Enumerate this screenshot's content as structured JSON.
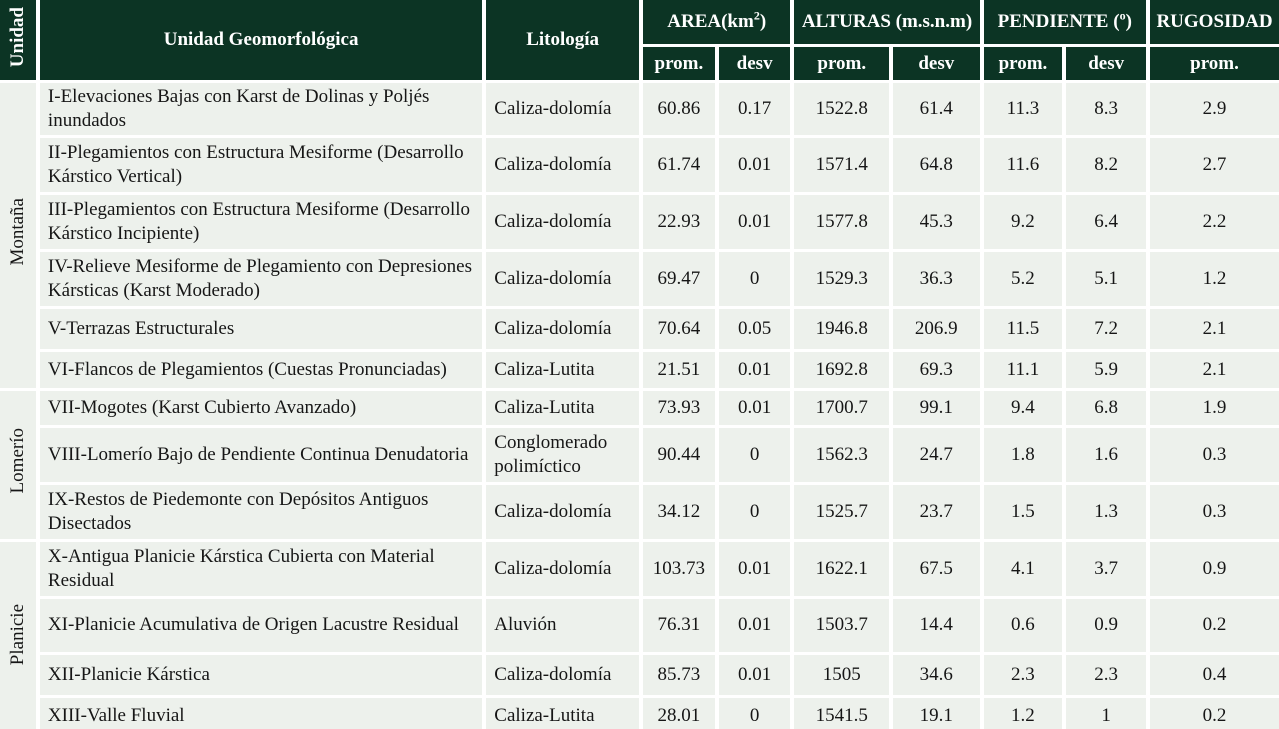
{
  "colors": {
    "header_bg": "#0c3424",
    "header_text": "#ffffff",
    "cell_bg": "#edf1ec",
    "body_text": "#161616",
    "separator": "#ffffff"
  },
  "table": {
    "header": {
      "unidad": "Unidad",
      "unit_col": "Unidad Geomorfológica",
      "litologia": "Litología",
      "area_pre": "AREA(km",
      "area_sup": "2",
      "area_post": ")",
      "alturas": "ALTURAS (m.s.n.m)",
      "pendiente_pre": "PENDIENTE (",
      "pendiente_sup": "o",
      "pendiente_post": ")",
      "rugosidad": "RUGOSIDAD",
      "prom": "prom.",
      "desv": "desv"
    },
    "groups": [
      {
        "label": "Montaña",
        "rows": [
          {
            "unit": "I-Elevaciones Bajas con Karst de Dolinas y Poljés inundados",
            "litologia": "Caliza-dolomía",
            "values": [
              "60.86",
              "0.17",
              "1522.8",
              "61.4",
              "11.3",
              "8.3",
              "2.9"
            ]
          },
          {
            "unit": "II-Plegamientos con Estructura Mesiforme (Desarrollo Kárstico Vertical)",
            "litologia": "Caliza-dolomía",
            "values": [
              "61.74",
              "0.01",
              "1571.4",
              "64.8",
              "11.6",
              "8.2",
              "2.7"
            ]
          },
          {
            "unit": "III-Plegamientos con Estructura Mesiforme (Desarrollo Kárstico Incipiente)",
            "litologia": "Caliza-dolomía",
            "values": [
              "22.93",
              "0.01",
              "1577.8",
              "45.3",
              "9.2",
              "6.4",
              "2.2"
            ]
          },
          {
            "unit": "IV-Relieve Mesiforme de Plegamiento con Depresiones Kársticas (Karst Moderado)",
            "litologia": "Caliza-dolomía",
            "values": [
              "69.47",
              "0",
              "1529.3",
              "36.3",
              "5.2",
              "5.1",
              "1.2"
            ]
          },
          {
            "unit": "V-Terrazas Estructurales",
            "litologia": "Caliza-dolomía",
            "values": [
              "70.64",
              "0.05",
              "1946.8",
              "206.9",
              "11.5",
              "7.2",
              "2.1"
            ]
          },
          {
            "unit": "VI-Flancos de Plegamientos (Cuestas Pronunciadas)",
            "litologia": "Caliza-Lutita",
            "values": [
              "21.51",
              "0.01",
              "1692.8",
              "69.3",
              "11.1",
              "5.9",
              "2.1"
            ]
          }
        ]
      },
      {
        "label": "Lomerío",
        "rows": [
          {
            "unit": "VII-Mogotes (Karst Cubierto Avanzado)",
            "litologia": "Caliza-Lutita",
            "values": [
              "73.93",
              "0.01",
              "1700.7",
              "99.1",
              "9.4",
              "6.8",
              "1.9"
            ]
          },
          {
            "unit": "VIII-Lomerío Bajo de Pendiente Continua Denudatoria",
            "litologia": "Conglomerado polimíctico",
            "values": [
              "90.44",
              "0",
              "1562.3",
              "24.7",
              "1.8",
              "1.6",
              "0.3"
            ]
          },
          {
            "unit": "IX-Restos de Piedemonte con Depósitos Antiguos Disectados",
            "litologia": "Caliza-dolomía",
            "values": [
              "34.12",
              "0",
              "1525.7",
              "23.7",
              "1.5",
              "1.3",
              "0.3"
            ]
          }
        ]
      },
      {
        "label": "Planicie",
        "rows": [
          {
            "unit": "X-Antigua Planicie Kárstica Cubierta con Material Residual",
            "litologia": "Caliza-dolomía",
            "values": [
              "103.73",
              "0.01",
              "1622.1",
              "67.5",
              "4.1",
              "3.7",
              "0.9"
            ]
          },
          {
            "unit": "XI-Planicie Acumulativa de Origen Lacustre Residual",
            "litologia": "Aluvión",
            "values": [
              "76.31",
              "0.01",
              "1503.7",
              "14.4",
              "0.6",
              "0.9",
              "0.2"
            ]
          },
          {
            "unit": "XII-Planicie Kárstica",
            "litologia": "Caliza-dolomía",
            "values": [
              "85.73",
              "0.01",
              "1505",
              "34.6",
              "2.3",
              "2.3",
              "0.4"
            ]
          },
          {
            "unit": "XIII-Valle Fluvial",
            "litologia": "Caliza-Lutita",
            "values": [
              "28.01",
              "0",
              "1541.5",
              "19.1",
              "1.2",
              "1",
              "0.2"
            ]
          }
        ]
      }
    ]
  }
}
